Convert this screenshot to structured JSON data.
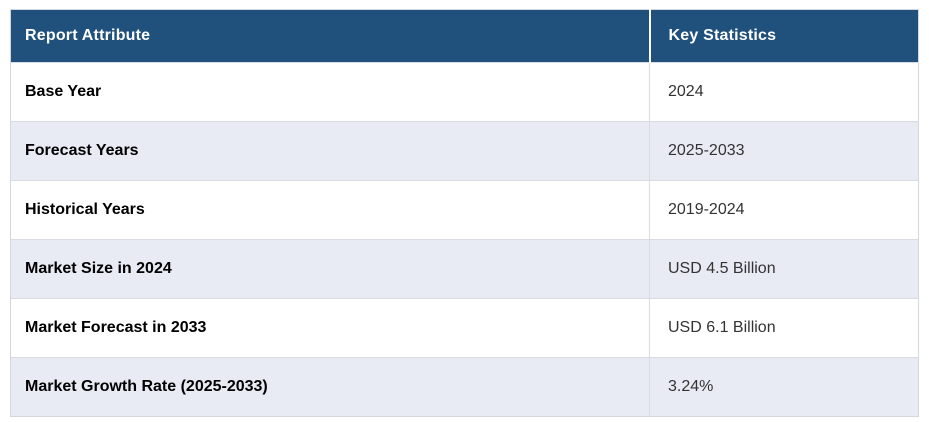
{
  "table": {
    "columns": [
      {
        "label": "Report Attribute"
      },
      {
        "label": "Key Statistics"
      }
    ],
    "rows": [
      {
        "attribute": "Base Year",
        "value": "2024"
      },
      {
        "attribute": "Forecast Years",
        "value": "2025-2033"
      },
      {
        "attribute": "Historical Years",
        "value": "2019-2024"
      },
      {
        "attribute": "Market Size in 2024",
        "value": "USD 4.5 Billion"
      },
      {
        "attribute": "Market Forecast in 2033",
        "value": "USD 6.1 Billion"
      },
      {
        "attribute": "Market Growth Rate (2025-2033)",
        "value": "3.24%"
      }
    ],
    "colors": {
      "header_bg": "#20507C",
      "header_text": "#FFFFFF",
      "row_bg": "#FFFFFF",
      "row_alt_bg": "#E8EAF4",
      "border": "#D9DBE2",
      "attribute_text": "#000000",
      "value_text": "#333333"
    }
  }
}
